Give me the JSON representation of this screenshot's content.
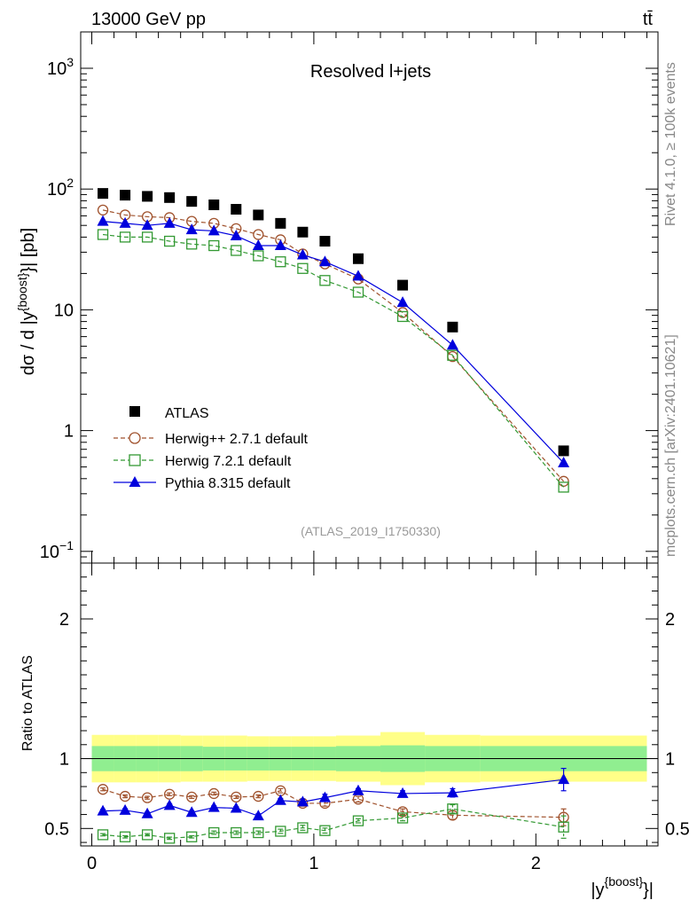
{
  "header": {
    "energy_label": "13000 GeV pp",
    "process_label": "tt̄"
  },
  "side_labels": {
    "rivet": "Rivet 4.1.0, ≥ 100k events",
    "mcplots": "mcplots.cern.ch [arXiv:2401.10621]"
  },
  "chart_data": [
    {
      "type": "scatter",
      "title": "Resolved l+jets",
      "ylabel_parts": [
        "dσ / d |y",
        "{boost}",
        "}| [pb]"
      ],
      "yscale": "log",
      "ylim": [
        0.08,
        2000
      ],
      "xlim": [
        -0.05,
        2.55
      ],
      "ytick_labels": [
        {
          "value": 1000,
          "base": "10",
          "exp": "3"
        },
        {
          "value": 100,
          "base": "10",
          "exp": "2"
        },
        {
          "value": 10,
          "base": "10",
          "exp": ""
        },
        {
          "value": 1,
          "base": "1",
          "exp": ""
        },
        {
          "value": 0.1,
          "base": "10",
          "exp": "−1"
        }
      ],
      "reference": "(ATLAS_2019_I1750330)",
      "x": [
        0.05,
        0.15,
        0.25,
        0.35,
        0.45,
        0.55,
        0.65,
        0.75,
        0.85,
        0.95,
        1.05,
        1.2,
        1.4,
        1.625,
        2.125
      ],
      "series": [
        {
          "name": "ATLAS",
          "color": "#000000",
          "marker": "square-filled",
          "values": [
            92,
            89,
            87,
            85,
            79,
            74,
            68,
            61,
            52,
            44,
            37,
            26.5,
            16,
            7.2,
            0.68
          ]
        },
        {
          "name": "Herwig++ 2.7.1 default",
          "color": "#a0522d",
          "marker": "circle-open",
          "line": "dashed",
          "values": [
            67,
            61,
            59,
            58,
            54,
            52,
            47,
            42,
            38,
            29,
            24,
            18,
            9.5,
            4.1,
            0.38
          ]
        },
        {
          "name": "Herwig 7.2.1 default",
          "color": "#339933",
          "marker": "square-open",
          "line": "dashed",
          "values": [
            42,
            40,
            40,
            37,
            35,
            34,
            31,
            28,
            25,
            22,
            17.5,
            14,
            8.8,
            4.2,
            0.34
          ]
        },
        {
          "name": "Pythia 8.315 default",
          "color": "#0000dd",
          "marker": "triangle-filled",
          "line": "solid",
          "values": [
            54,
            52,
            50,
            52,
            46,
            45,
            41,
            34,
            34,
            28.5,
            25,
            19,
            11.5,
            5.1,
            0.54
          ]
        }
      ]
    },
    {
      "type": "scatter",
      "ylabel": "Ratio to ATLAS",
      "xlabel_parts": [
        "|y",
        "{boost}",
        "}|"
      ],
      "ylim": [
        0.375,
        2.4
      ],
      "xlim": [
        -0.05,
        2.55
      ],
      "ytick_labels": [
        "0.5",
        "1",
        "2"
      ],
      "xtick_labels": [
        "0",
        "1",
        "2"
      ],
      "bins": [
        0.0,
        0.1,
        0.2,
        0.3,
        0.4,
        0.5,
        0.6,
        0.7,
        0.8,
        0.9,
        1.0,
        1.1,
        1.3,
        1.5,
        1.75,
        2.5
      ],
      "band_inner": [
        0.09,
        0.09,
        0.09,
        0.09,
        0.09,
        0.085,
        0.085,
        0.085,
        0.085,
        0.085,
        0.085,
        0.09,
        0.095,
        0.09,
        0.09
      ],
      "band_outer": [
        0.17,
        0.17,
        0.17,
        0.17,
        0.165,
        0.165,
        0.165,
        0.16,
        0.16,
        0.16,
        0.16,
        0.165,
        0.19,
        0.17,
        0.165
      ],
      "x": [
        0.05,
        0.15,
        0.25,
        0.35,
        0.45,
        0.55,
        0.65,
        0.75,
        0.85,
        0.95,
        1.05,
        1.2,
        1.4,
        1.625,
        2.125
      ],
      "series": [
        {
          "name": "Herwig++ 2.7.1 default",
          "color": "#a0522d",
          "marker": "circle-open",
          "line": "dashed",
          "values": [
            0.78,
            0.73,
            0.72,
            0.745,
            0.725,
            0.75,
            0.725,
            0.73,
            0.77,
            0.68,
            0.68,
            0.71,
            0.62,
            0.595,
            0.58
          ],
          "errors": [
            0.01,
            0.01,
            0.01,
            0.01,
            0.01,
            0.01,
            0.01,
            0.01,
            0.015,
            0.02,
            0.02,
            0.02,
            0.02,
            0.03,
            0.06
          ]
        },
        {
          "name": "Herwig 7.2.1 default",
          "color": "#339933",
          "marker": "square-open",
          "line": "dashed",
          "values": [
            0.455,
            0.44,
            0.455,
            0.43,
            0.44,
            0.47,
            0.47,
            0.47,
            0.48,
            0.505,
            0.485,
            0.555,
            0.575,
            0.64,
            0.51
          ],
          "errors": [
            0.008,
            0.008,
            0.008,
            0.008,
            0.008,
            0.012,
            0.012,
            0.012,
            0.015,
            0.018,
            0.018,
            0.015,
            0.02,
            0.03,
            0.08
          ]
        },
        {
          "name": "Pythia 8.315 default",
          "color": "#0000dd",
          "marker": "triangle-filled",
          "line": "solid",
          "values": [
            0.625,
            0.63,
            0.605,
            0.665,
            0.615,
            0.65,
            0.645,
            0.59,
            0.7,
            0.69,
            0.72,
            0.77,
            0.75,
            0.755,
            0.85
          ],
          "errors": [
            0.012,
            0.012,
            0.012,
            0.012,
            0.012,
            0.012,
            0.012,
            0.015,
            0.015,
            0.02,
            0.025,
            0.015,
            0.02,
            0.03,
            0.08
          ]
        }
      ]
    }
  ]
}
